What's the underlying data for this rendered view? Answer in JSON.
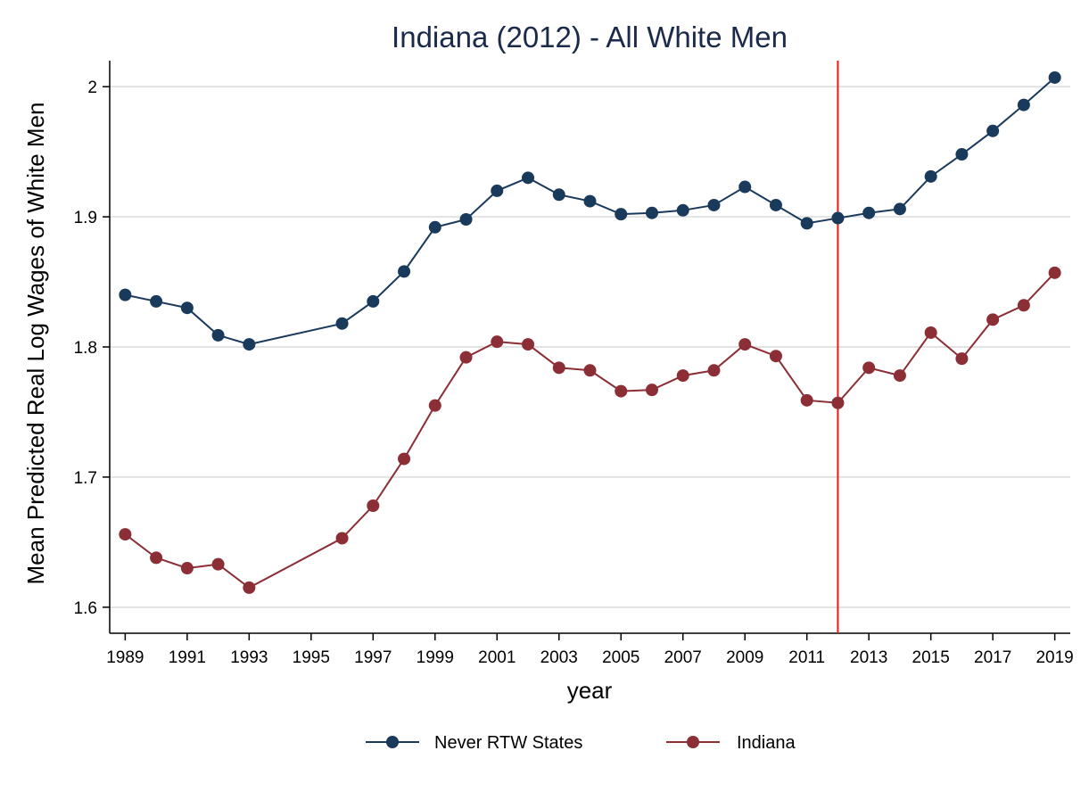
{
  "chart_data": {
    "type": "line",
    "title": "Indiana (2012) - All White Men",
    "xlabel": "year",
    "ylabel": "Mean Predicted Real Log Wages of White Men",
    "xlim": [
      1988.5,
      2019.5
    ],
    "ylim": [
      1.58,
      2.02
    ],
    "x_ticks": [
      "1989",
      "1991",
      "1993",
      "1995",
      "1997",
      "1999",
      "2001",
      "2003",
      "2005",
      "2007",
      "2009",
      "2011",
      "2013",
      "2015",
      "2017",
      "2019"
    ],
    "y_ticks": [
      "1.6",
      "1.7",
      "1.8",
      "1.9",
      "2"
    ],
    "grid": "horizontal",
    "legend_position": "bottom",
    "reference_line": {
      "x": 2012,
      "color": "#e41a1c"
    },
    "x": [
      1989,
      1990,
      1991,
      1992,
      1993,
      1996,
      1997,
      1998,
      1999,
      2000,
      2001,
      2002,
      2003,
      2004,
      2005,
      2006,
      2007,
      2008,
      2009,
      2010,
      2011,
      2012,
      2013,
      2014,
      2015,
      2016,
      2017,
      2018,
      2019
    ],
    "series": [
      {
        "name": "Never RTW States",
        "color": "#1a3a5c",
        "values": [
          1.84,
          1.835,
          1.83,
          1.809,
          1.802,
          1.818,
          1.835,
          1.858,
          1.892,
          1.898,
          1.92,
          1.93,
          1.917,
          1.912,
          1.902,
          1.903,
          1.905,
          1.909,
          1.923,
          1.909,
          1.895,
          1.899,
          1.903,
          1.906,
          1.931,
          1.948,
          1.966,
          1.986,
          2.007
        ]
      },
      {
        "name": "Indiana",
        "color": "#8b2e35",
        "values": [
          1.656,
          1.638,
          1.63,
          1.633,
          1.615,
          1.653,
          1.678,
          1.714,
          1.755,
          1.792,
          1.804,
          1.802,
          1.784,
          1.782,
          1.766,
          1.767,
          1.778,
          1.782,
          1.802,
          1.793,
          1.759,
          1.757,
          1.784,
          1.778,
          1.811,
          1.791,
          1.821,
          1.832,
          1.857
        ]
      }
    ]
  }
}
